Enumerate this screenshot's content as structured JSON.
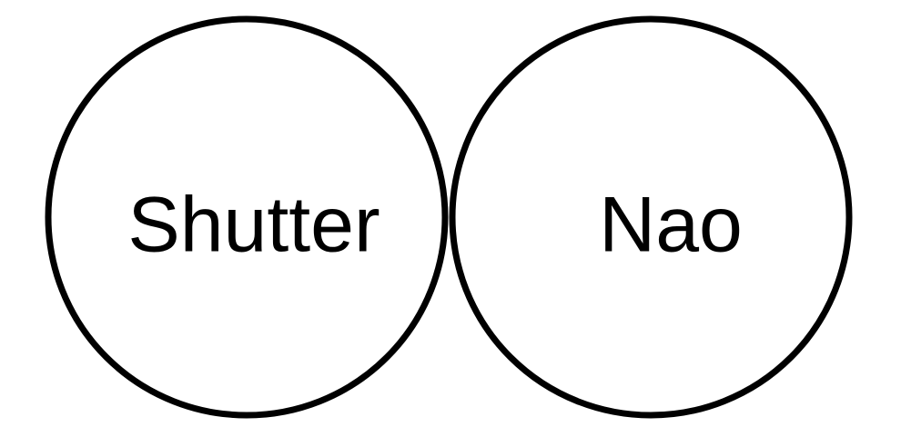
{
  "diagram": {
    "circles": [
      {
        "label": "Shutter"
      },
      {
        "label": "Nao"
      }
    ]
  },
  "colors": {
    "stroke": "#000000",
    "background": "#ffffff",
    "text": "#000000"
  }
}
